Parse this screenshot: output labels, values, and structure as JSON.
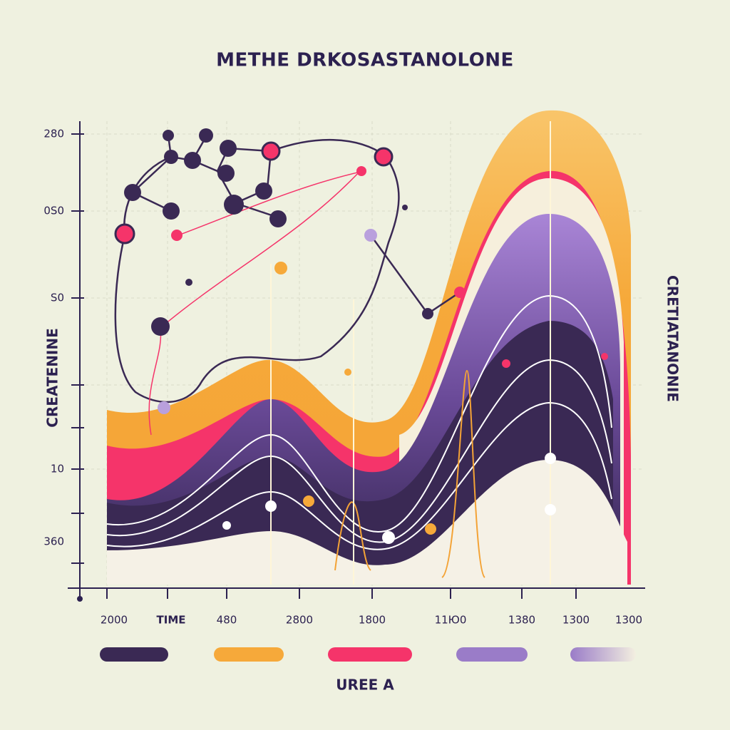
{
  "title": "METHE DRKOSASTANOLONE",
  "y_labels": [
    "280",
    "0S0",
    "S0",
    "10",
    "360"
  ],
  "x_labels": [
    "2000",
    "TIME",
    "480",
    "2800",
    "1800",
    "11Ю0",
    "1380",
    "1300",
    "1300"
  ],
  "left_label": "CREATENINE",
  "right_label": "CRETIATANONIE",
  "legend_label": "UREE A"
}
